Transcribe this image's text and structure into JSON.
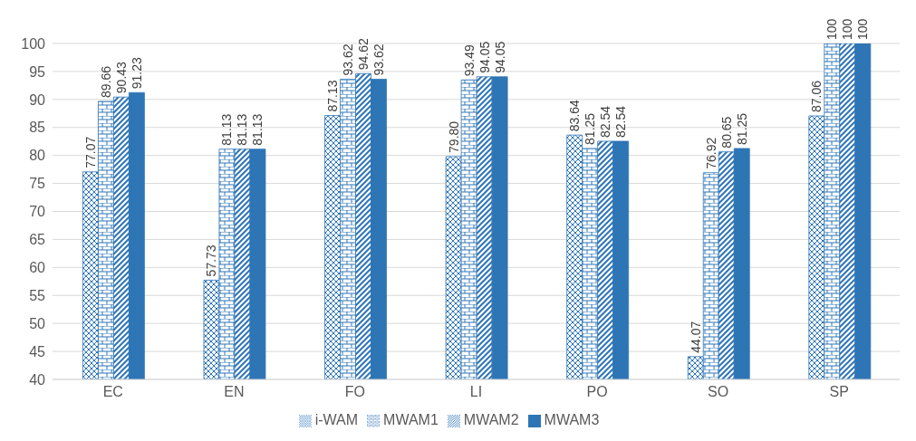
{
  "chart_data": {
    "type": "bar",
    "categories": [
      "EC",
      "EN",
      "FO",
      "LI",
      "PO",
      "SO",
      "SP"
    ],
    "series": [
      {
        "name": "i-WAM",
        "color": "#2e75b6",
        "values": [
          77.07,
          57.73,
          87.13,
          79.8,
          83.64,
          44.07,
          87.06
        ],
        "value_labels": [
          "77.07",
          "57.73",
          "87.13",
          "79.80",
          "83.64",
          "44.07",
          "87.06"
        ]
      },
      {
        "name": "MWAM1",
        "color": "#2e75b6",
        "values": [
          89.66,
          81.13,
          93.62,
          93.49,
          81.25,
          76.92,
          100
        ],
        "value_labels": [
          "89.66",
          "81.13",
          "93.62",
          "93.49",
          "81.25",
          "76.92",
          "100"
        ]
      },
      {
        "name": "MWAM2",
        "color": "#2e75b6",
        "values": [
          90.43,
          81.13,
          94.62,
          94.05,
          82.54,
          80.65,
          100
        ],
        "value_labels": [
          "90.43",
          "81.13",
          "94.62",
          "94.05",
          "82.54",
          "80.65",
          "100"
        ]
      },
      {
        "name": "MWAM3",
        "color": "#2e75b6",
        "values": [
          91.23,
          81.13,
          93.62,
          94.05,
          82.54,
          81.25,
          100
        ],
        "value_labels": [
          "91.23",
          "81.13",
          "93.62",
          "94.05",
          "82.54",
          "81.25",
          "100"
        ]
      }
    ],
    "ylim": [
      40,
      100
    ],
    "yticks": [
      40,
      45,
      50,
      55,
      60,
      65,
      70,
      75,
      80,
      85,
      90,
      95,
      100
    ],
    "grid": "y",
    "legend": "bottom"
  }
}
